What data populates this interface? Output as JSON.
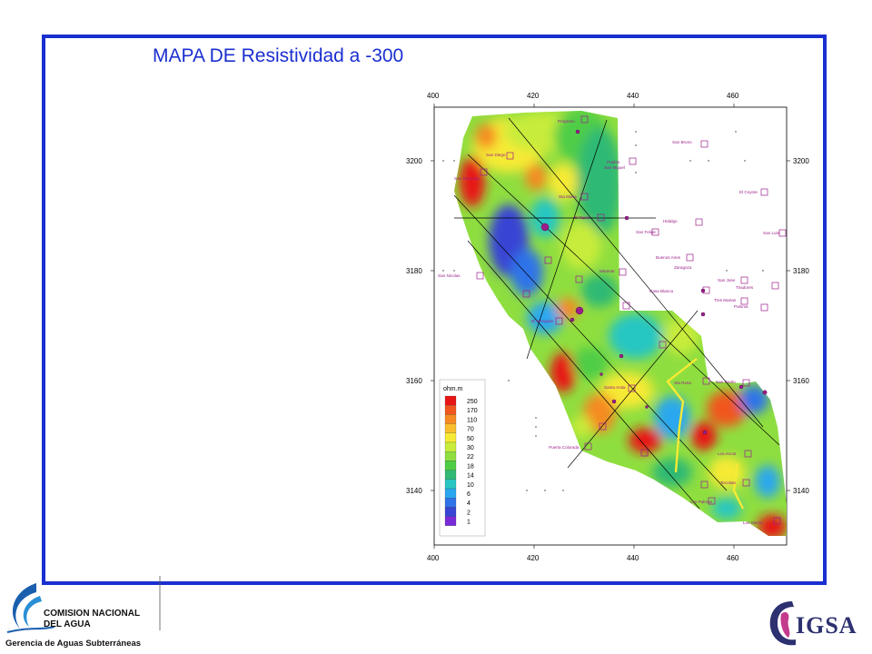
{
  "slide": {
    "title": "MAPA DE Resistividad a -300"
  },
  "map": {
    "x_ticks": [
      "400",
      "420",
      "440",
      "460"
    ],
    "y_ticks": [
      "3200",
      "3180",
      "3160",
      "3140"
    ],
    "legend_unit": "ohm.m",
    "legend_values": [
      "250",
      "170",
      "110",
      "70",
      "50",
      "30",
      "22",
      "18",
      "14",
      "10",
      "6",
      "4",
      "2",
      "1"
    ],
    "legend_colors": [
      "#e81515",
      "#f0561e",
      "#f58a22",
      "#f9be2c",
      "#f6ea34",
      "#c8ec3a",
      "#8fde3f",
      "#50cd46",
      "#2fb974",
      "#27c6c2",
      "#2aa7ee",
      "#2f73e8",
      "#3845d4",
      "#7a2bd8"
    ],
    "sites": [
      "Progreso",
      "San Diego",
      "San Rosendo",
      "San Bruno",
      "Pueblo",
      "San Miguel",
      "El Coyote",
      "Hidalgo",
      "San Luis",
      "Buenos Aires",
      "San Nicolas",
      "Sta Maria",
      "El Tapon",
      "Casa Blanca",
      "San Jose",
      "Miramar",
      "Zaragoza",
      "San Felipe",
      "Tiradores",
      "Paloma",
      "San Pedro",
      "Tres Marias",
      "Sta Rosa",
      "El Mezquite",
      "Santa Anita",
      "Puerta Colorada",
      "Los Arcos",
      "Tecolote",
      "Las Palmas",
      "Los Sierra"
    ]
  },
  "organization": {
    "name_line1": "COMISION NACIONAL",
    "name_line2": "DEL  AGUA",
    "subtitle": "Gerencia de Aguas Subterráneas",
    "partner_logo_text": "IGSA"
  }
}
